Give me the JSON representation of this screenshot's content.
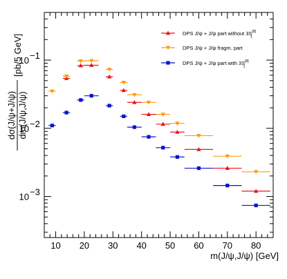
{
  "chart_data": {
    "type": "scatter",
    "title": "",
    "xlabel": "m(J/ψ,J/ψ) [GeV]",
    "ylabel_num": "dσ(J/ψ+J/ψ)",
    "ylabel_den": "dm(J/ψ,J/ψ)",
    "ylabel_unit": "[pb/5 GeV]",
    "xlim": [
      6,
      86
    ],
    "ylim": [
      0.00025,
      0.5
    ],
    "yscale": "log",
    "x_ticks": [
      10,
      20,
      30,
      40,
      50,
      60,
      70,
      80
    ],
    "y_ticks": [
      {
        "value": 0.1,
        "base": "10",
        "exp": "−1"
      },
      {
        "value": 0.01,
        "base": "10",
        "exp": "−2"
      },
      {
        "value": 0.001,
        "base": "10",
        "exp": "−3"
      }
    ],
    "legend_position": "top-right",
    "series": [
      {
        "name": "DPS J/ψ + J/ψ part without 3S",
        "name_sup": "[8]",
        "name_sub": "1",
        "color": "#e8141e",
        "marker": "triangle-up",
        "points": [
          {
            "x1": 12.5,
            "x2": 15,
            "y": 0.054
          },
          {
            "x1": 17.5,
            "x2": 20,
            "y": 0.083
          },
          {
            "x1": 20,
            "x2": 25,
            "y": 0.084
          },
          {
            "x1": 27.5,
            "x2": 30,
            "y": 0.057
          },
          {
            "x1": 32.5,
            "x2": 35,
            "y": 0.036
          },
          {
            "x1": 35,
            "x2": 40,
            "y": 0.024
          },
          {
            "x1": 40,
            "x2": 45,
            "y": 0.016
          },
          {
            "x1": 45,
            "x2": 50,
            "y": 0.0115
          },
          {
            "x1": 50,
            "x2": 55,
            "y": 0.0088
          },
          {
            "x1": 55,
            "x2": 65,
            "y": 0.0049
          },
          {
            "x1": 65,
            "x2": 75,
            "y": 0.0026
          },
          {
            "x1": 75,
            "x2": 85,
            "y": 0.0012
          }
        ]
      },
      {
        "name": "DPS J/ψ + J/ψ fragm. part",
        "color": "#ff9b0f",
        "marker": "triangle-down",
        "points": [
          {
            "x1": 7.5,
            "x2": 10,
            "y": 0.035
          },
          {
            "x1": 12.5,
            "x2": 15,
            "y": 0.058
          },
          {
            "x1": 17.5,
            "x2": 20,
            "y": 0.097
          },
          {
            "x1": 20,
            "x2": 25,
            "y": 0.098
          },
          {
            "x1": 27.5,
            "x2": 30,
            "y": 0.073
          },
          {
            "x1": 32.5,
            "x2": 35,
            "y": 0.047
          },
          {
            "x1": 35,
            "x2": 40,
            "y": 0.031
          },
          {
            "x1": 40,
            "x2": 45,
            "y": 0.024
          },
          {
            "x1": 45,
            "x2": 50,
            "y": 0.016
          },
          {
            "x1": 50,
            "x2": 55,
            "y": 0.0118
          },
          {
            "x1": 55,
            "x2": 65,
            "y": 0.0078
          },
          {
            "x1": 65,
            "x2": 75,
            "y": 0.0039
          },
          {
            "x1": 75,
            "x2": 85,
            "y": 0.0023
          }
        ]
      },
      {
        "name": "DPS J/ψ + J/ψ  part with 3S",
        "name_sup": "[8]",
        "name_sub": "1",
        "color": "#0a14c8",
        "marker": "square",
        "points": [
          {
            "x1": 7.5,
            "x2": 10,
            "y": 0.011
          },
          {
            "x1": 12.5,
            "x2": 15,
            "y": 0.017
          },
          {
            "x1": 17.5,
            "x2": 20,
            "y": 0.026
          },
          {
            "x1": 20,
            "x2": 25,
            "y": 0.03
          },
          {
            "x1": 27.5,
            "x2": 30,
            "y": 0.0215
          },
          {
            "x1": 32.5,
            "x2": 35,
            "y": 0.015
          },
          {
            "x1": 35,
            "x2": 40,
            "y": 0.0104
          },
          {
            "x1": 40,
            "x2": 45,
            "y": 0.0075
          },
          {
            "x1": 45,
            "x2": 50,
            "y": 0.0052
          },
          {
            "x1": 50,
            "x2": 55,
            "y": 0.0038
          },
          {
            "x1": 55,
            "x2": 65,
            "y": 0.0026
          },
          {
            "x1": 65,
            "x2": 75,
            "y": 0.00145
          },
          {
            "x1": 75,
            "x2": 85,
            "y": 0.00074
          }
        ]
      }
    ]
  }
}
